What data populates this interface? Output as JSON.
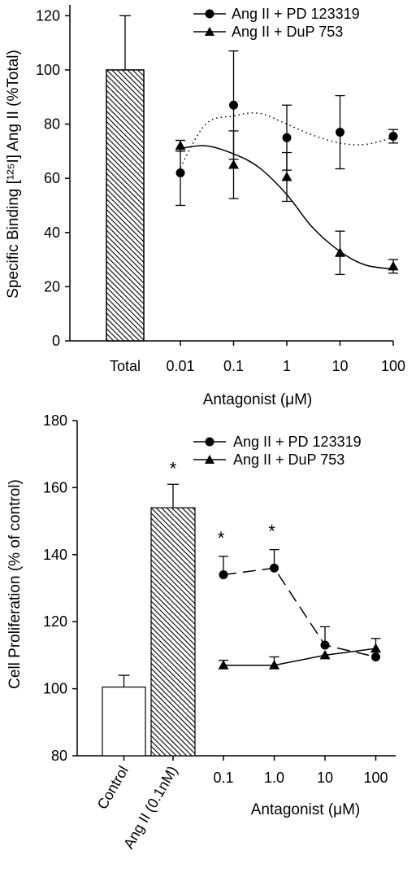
{
  "chart_data": [
    {
      "type": "line",
      "ylabel": "Specific Binding [¹²⁵I] Ang II (%Total)",
      "xlabel": "Antagonist (μM)",
      "x_scale": "log",
      "x_tick_labels": [
        "Total",
        "0.01",
        "0.1",
        "1",
        "10",
        "100"
      ],
      "y_ticks": [
        0,
        20,
        40,
        60,
        80,
        100,
        120
      ],
      "ylim": [
        0,
        124
      ],
      "x": [
        0.01,
        0.1,
        1,
        10,
        100
      ],
      "bar": {
        "category": "Total",
        "value": 100,
        "error": 20,
        "pattern": "hatched"
      },
      "series": [
        {
          "name": "Ang II + PD 123319",
          "marker": "circle",
          "values": [
            62,
            87,
            75,
            77,
            75.5
          ],
          "errors": [
            12,
            20,
            12,
            13.5,
            2.5
          ],
          "fit": "dotted"
        },
        {
          "name": "Ang II + DuP 753",
          "marker": "triangle",
          "values": [
            72,
            65,
            60.5,
            32.5,
            27.5
          ],
          "errors": [
            2,
            12.5,
            9,
            8,
            2.5
          ],
          "fit": "solid"
        }
      ],
      "legend_position": "top-right",
      "grid": false
    },
    {
      "type": "line",
      "ylabel": "Cell Proliferation (% of control)",
      "xlabel": "Antagonist (μM)",
      "x_scale": "log",
      "x_tick_labels": [
        "0.1",
        "1.0",
        "10",
        "100"
      ],
      "category_labels": [
        "Control",
        "Ang II (0.1nM)"
      ],
      "y_ticks": [
        80,
        100,
        120,
        140,
        160,
        180
      ],
      "ylim": [
        80,
        180
      ],
      "x": [
        0.1,
        1.0,
        10,
        100
      ],
      "bars": [
        {
          "category": "Control",
          "value": 100.5,
          "error": 3.5,
          "pattern": "open"
        },
        {
          "category": "Ang II (0.1nM)",
          "value": 154,
          "error": 7,
          "pattern": "hatched",
          "annotation": "*"
        }
      ],
      "series": [
        {
          "name": "Ang II + PD 123319",
          "marker": "circle",
          "line": "dashed",
          "values": [
            134,
            136,
            113,
            109.5
          ],
          "errors": [
            5.5,
            5.5,
            5.5,
            0
          ],
          "annotations": [
            "*",
            "*",
            "",
            ""
          ]
        },
        {
          "name": "Ang II + DuP 753",
          "marker": "triangle",
          "line": "solid",
          "values": [
            107,
            107,
            110,
            112
          ],
          "errors": [
            1.5,
            2.5,
            0,
            3
          ],
          "annotations": [
            "",
            "",
            "",
            ""
          ]
        }
      ],
      "legend_position": "top-right",
      "grid": false
    }
  ]
}
